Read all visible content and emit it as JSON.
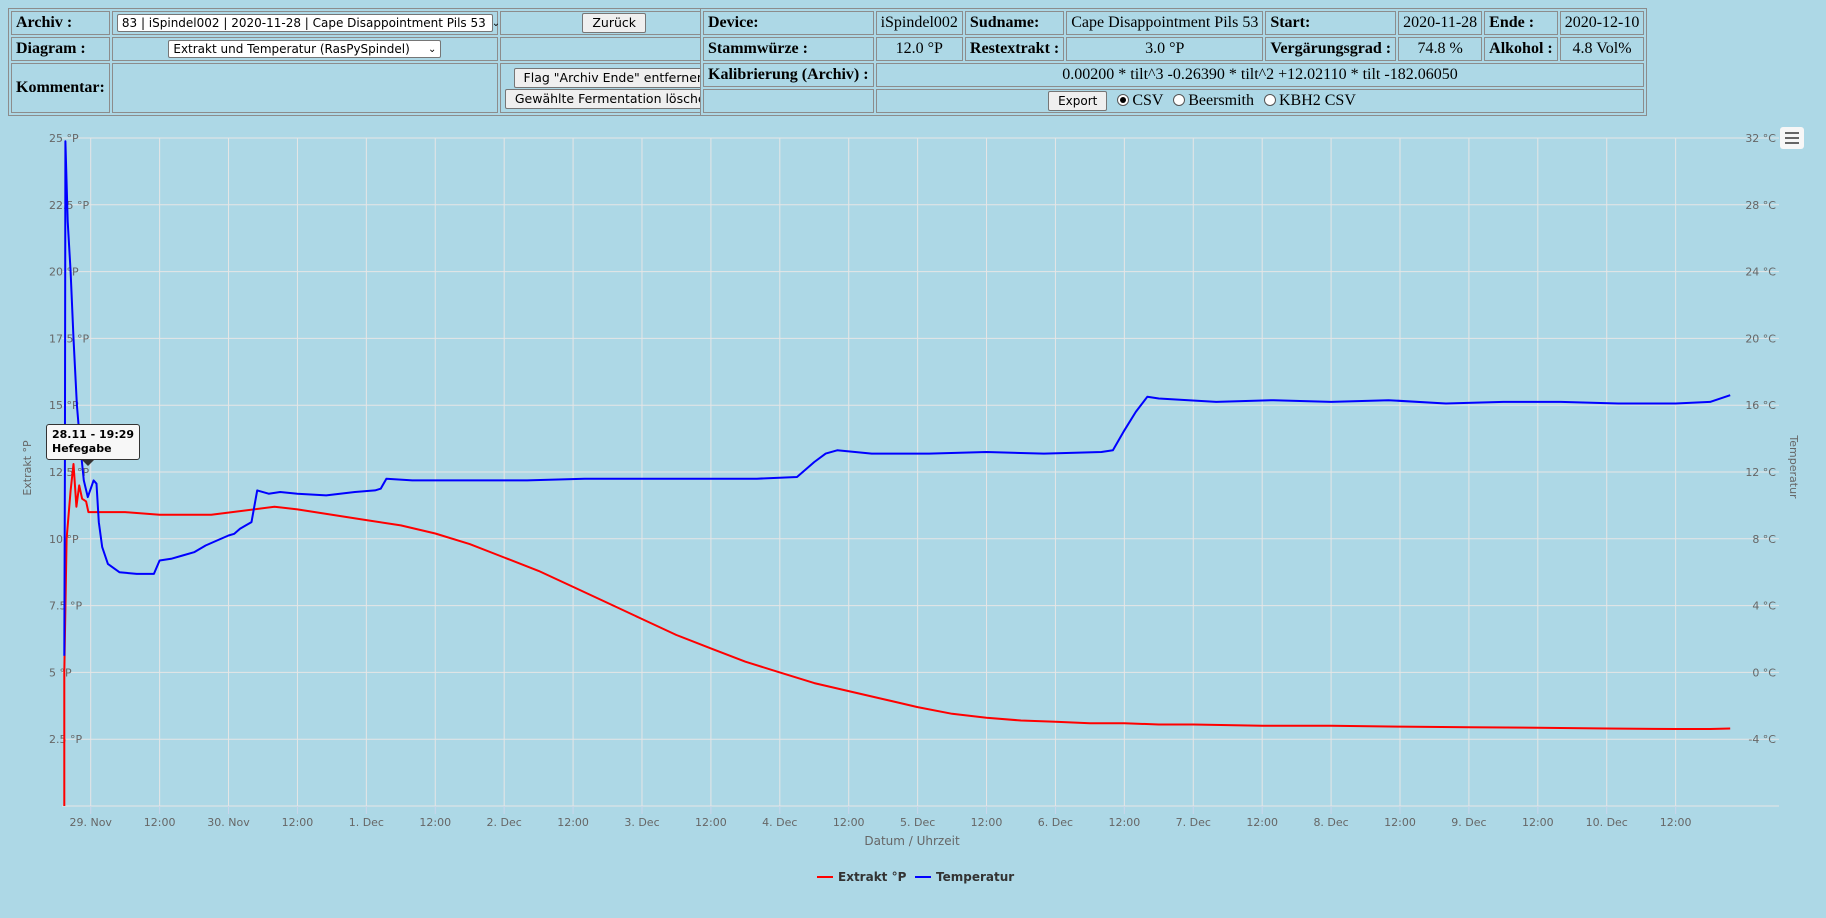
{
  "form": {
    "archiv_label": "Archiv :",
    "archiv_value": "83 | iSpindel002 | 2020-11-28 | Cape Disappointment Pils 53",
    "zurueck_button": "Zurück",
    "diagram_label": "Diagram :",
    "diagram_value": "Extrakt und Temperatur (RasPySpindel)",
    "kommentar_label": "Kommentar:",
    "flag_button": "Flag \"Archiv Ende\" entfernen",
    "delete_button": "Gewählte Fermentation löschen"
  },
  "info": {
    "device_label": "Device:",
    "device_value": "iSpindel002",
    "sudname_label": "Sudname:",
    "sudname_value": "Cape Disappointment Pils 53",
    "start_label": "Start:",
    "start_value": "2020-11-28",
    "ende_label": "Ende :",
    "ende_value": "2020-12-10",
    "stammwuerze_label": "Stammwürze :",
    "stammwuerze_value": "12.0 °P",
    "restextrakt_label": "Restextrakt :",
    "restextrakt_value": "3.0 °P",
    "vergaerungsgrad_label": "Vergärungsgrad :",
    "vergaerungsgrad_value": "74.8 %",
    "alkohol_label": "Alkohol :",
    "alkohol_value": "4.8 Vol%",
    "kalibrierung_label": "Kalibrierung (Archiv) :",
    "kalibrierung_value": "0.00200 * tilt^3 -0.26390 * tilt^2 +12.02110 * tilt -182.06050",
    "export_button": "Export",
    "export_options": [
      "CSV",
      "Beersmith",
      "KBH2 CSV"
    ],
    "export_selected": "CSV"
  },
  "tooltip": {
    "line1": "28.11 - 19:29",
    "line2": "Hefegabe"
  },
  "chart_data": {
    "type": "line",
    "xlabel": "Datum / Uhrzeit",
    "ylabel_left": "Extrakt °P",
    "ylabel_right": "Temperatur",
    "x_unit": "hours since 28 Nov 00:00",
    "xlim": [
      19.0,
      318.0
    ],
    "x_ticks": [
      {
        "h": 24,
        "label": "29. Nov"
      },
      {
        "h": 36,
        "label": "12:00"
      },
      {
        "h": 48,
        "label": "30. Nov"
      },
      {
        "h": 60,
        "label": "12:00"
      },
      {
        "h": 72,
        "label": "1. Dec"
      },
      {
        "h": 84,
        "label": "12:00"
      },
      {
        "h": 96,
        "label": "2. Dec"
      },
      {
        "h": 108,
        "label": "12:00"
      },
      {
        "h": 120,
        "label": "3. Dec"
      },
      {
        "h": 132,
        "label": "12:00"
      },
      {
        "h": 144,
        "label": "4. Dec"
      },
      {
        "h": 156,
        "label": "12:00"
      },
      {
        "h": 168,
        "label": "5. Dec"
      },
      {
        "h": 180,
        "label": "12:00"
      },
      {
        "h": 192,
        "label": "6. Dec"
      },
      {
        "h": 204,
        "label": "12:00"
      },
      {
        "h": 216,
        "label": "7. Dec"
      },
      {
        "h": 228,
        "label": "12:00"
      },
      {
        "h": 240,
        "label": "8. Dec"
      },
      {
        "h": 252,
        "label": "12:00"
      },
      {
        "h": 264,
        "label": "9. Dec"
      },
      {
        "h": 276,
        "label": "12:00"
      },
      {
        "h": 288,
        "label": "10. Dec"
      },
      {
        "h": 300,
        "label": "12:00"
      }
    ],
    "y_left": {
      "min": 0,
      "max": 25,
      "ticks": [
        2.5,
        5,
        7.5,
        10,
        12.5,
        15,
        17.5,
        20,
        22.5,
        25
      ],
      "tick_labels": [
        "2.5 °P",
        "5 °P",
        "7.5 °P",
        "10 °P",
        "12.5 °P",
        "15 °P",
        "17.5 °P",
        "20 °P",
        "22.5 °P",
        "25 °P"
      ]
    },
    "y_right": {
      "min": -8,
      "max": 32,
      "ticks": [
        -4,
        0,
        4,
        8,
        12,
        16,
        20,
        24,
        28,
        32
      ],
      "tick_labels": [
        "-4 °C",
        "0 °C",
        "4 °C",
        "8 °C",
        "12 °C",
        "16 °C",
        "20 °C",
        "24 °C",
        "28 °C",
        "32 °C"
      ]
    },
    "series": [
      {
        "name": "Extrakt °P",
        "color": "#ff0000",
        "axis": "left",
        "points": [
          [
            19.4,
            0.0
          ],
          [
            19.4,
            5.0
          ],
          [
            19.8,
            10.0
          ],
          [
            20.5,
            11.8
          ],
          [
            21.0,
            12.8
          ],
          [
            21.5,
            11.2
          ],
          [
            22.0,
            12.0
          ],
          [
            22.5,
            11.5
          ],
          [
            23.2,
            11.4
          ],
          [
            23.6,
            11.0
          ],
          [
            25,
            11.0
          ],
          [
            30,
            11.0
          ],
          [
            36,
            10.9
          ],
          [
            42,
            10.9
          ],
          [
            45,
            10.9
          ],
          [
            56,
            11.2
          ],
          [
            60,
            11.1
          ],
          [
            66,
            10.9
          ],
          [
            72,
            10.7
          ],
          [
            78,
            10.5
          ],
          [
            84,
            10.2
          ],
          [
            90,
            9.8
          ],
          [
            96,
            9.3
          ],
          [
            102,
            8.8
          ],
          [
            108,
            8.2
          ],
          [
            114,
            7.6
          ],
          [
            120,
            7.0
          ],
          [
            126,
            6.4
          ],
          [
            132,
            5.9
          ],
          [
            138,
            5.4
          ],
          [
            144,
            5.0
          ],
          [
            150,
            4.6
          ],
          [
            156,
            4.3
          ],
          [
            162,
            4.0
          ],
          [
            168,
            3.7
          ],
          [
            174,
            3.45
          ],
          [
            180,
            3.3
          ],
          [
            186,
            3.2
          ],
          [
            192,
            3.15
          ],
          [
            198,
            3.1
          ],
          [
            204,
            3.1
          ],
          [
            210,
            3.05
          ],
          [
            216,
            3.05
          ],
          [
            228,
            3.0
          ],
          [
            240,
            3.0
          ],
          [
            252,
            2.97
          ],
          [
            264,
            2.95
          ],
          [
            276,
            2.93
          ],
          [
            288,
            2.9
          ],
          [
            300,
            2.88
          ],
          [
            306,
            2.88
          ],
          [
            309.5,
            2.9
          ]
        ]
      },
      {
        "name": "Temperatur",
        "color": "#0000ff",
        "axis": "right",
        "points": [
          [
            19.4,
            1.0
          ],
          [
            19.5,
            12.0
          ],
          [
            19.6,
            31.8
          ],
          [
            20.0,
            27.0
          ],
          [
            20.5,
            24.0
          ],
          [
            21.0,
            20.0
          ],
          [
            21.6,
            16.0
          ],
          [
            22.2,
            13.5
          ],
          [
            22.8,
            11.5
          ],
          [
            23.5,
            10.5
          ],
          [
            24.5,
            11.5
          ],
          [
            25.0,
            11.3
          ],
          [
            25.4,
            9.0
          ],
          [
            26.0,
            7.5
          ],
          [
            27.0,
            6.5
          ],
          [
            29.0,
            6.0
          ],
          [
            32.0,
            5.9
          ],
          [
            35.0,
            5.9
          ],
          [
            36.0,
            6.7
          ],
          [
            38.0,
            6.8
          ],
          [
            40.0,
            7.0
          ],
          [
            42.0,
            7.2
          ],
          [
            44.0,
            7.6
          ],
          [
            46.0,
            7.9
          ],
          [
            48.0,
            8.2
          ],
          [
            49.0,
            8.3
          ],
          [
            50.0,
            8.6
          ],
          [
            51.0,
            8.8
          ],
          [
            52.0,
            9.0
          ],
          [
            53.0,
            10.9
          ],
          [
            55.0,
            10.7
          ],
          [
            57.0,
            10.8
          ],
          [
            60.0,
            10.7
          ],
          [
            65.0,
            10.6
          ],
          [
            70.0,
            10.8
          ],
          [
            73.5,
            10.9
          ],
          [
            74.5,
            11.0
          ],
          [
            75.5,
            11.6
          ],
          [
            80.0,
            11.5
          ],
          [
            90.0,
            11.5
          ],
          [
            100.0,
            11.5
          ],
          [
            110.0,
            11.6
          ],
          [
            120.0,
            11.6
          ],
          [
            130.0,
            11.6
          ],
          [
            140.0,
            11.6
          ],
          [
            147.0,
            11.7
          ],
          [
            150.0,
            12.6
          ],
          [
            152.0,
            13.1
          ],
          [
            154.0,
            13.3
          ],
          [
            160.0,
            13.1
          ],
          [
            170.0,
            13.1
          ],
          [
            180.0,
            13.2
          ],
          [
            190.0,
            13.1
          ],
          [
            200.0,
            13.2
          ],
          [
            202.0,
            13.3
          ],
          [
            204.0,
            14.5
          ],
          [
            206.0,
            15.6
          ],
          [
            208.0,
            16.5
          ],
          [
            210.0,
            16.4
          ],
          [
            220.0,
            16.2
          ],
          [
            230.0,
            16.3
          ],
          [
            240.0,
            16.2
          ],
          [
            250.0,
            16.3
          ],
          [
            260.0,
            16.1
          ],
          [
            270.0,
            16.2
          ],
          [
            280.0,
            16.2
          ],
          [
            290.0,
            16.1
          ],
          [
            300.0,
            16.1
          ],
          [
            306.0,
            16.2
          ],
          [
            309.5,
            16.6
          ]
        ]
      }
    ],
    "legend": {
      "placement": "bottom-center"
    }
  }
}
